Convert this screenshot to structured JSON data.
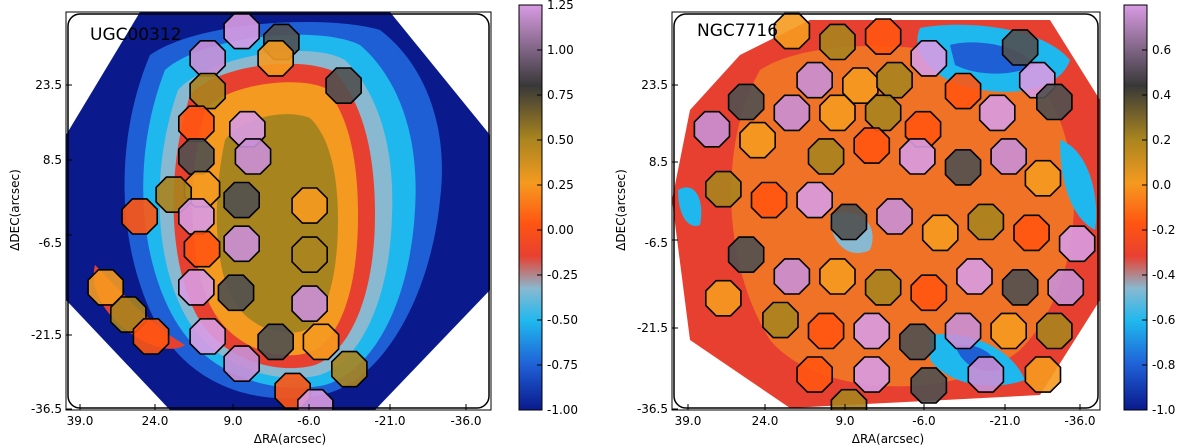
{
  "chart_data": [
    {
      "type": "heatmap",
      "title": "UGC00312",
      "xlabel": "ΔRA(arcsec)",
      "ylabel": "ΔDEC(arcsec)",
      "xlim": [
        39.0,
        -36.0
      ],
      "ylim": [
        -36.5,
        36.5
      ],
      "x_ticks": [
        "39.0",
        "24.0",
        "9.0",
        "-6.0",
        "-21.0",
        "-36.0"
      ],
      "y_ticks": [
        "23.5",
        "8.5",
        "-6.5",
        "-21.5",
        "-36.5"
      ],
      "colorbar": {
        "range": [
          -1.0,
          1.25
        ],
        "ticks": [
          "1.25",
          "1.00",
          "0.75",
          "0.50",
          "0.25",
          "0.00",
          "-0.25",
          "-0.50",
          "-0.75",
          "-1.00"
        ]
      },
      "regions": [
        {
          "x": 8,
          "y": 33
        },
        {
          "x": 1,
          "y": 31
        },
        {
          "x": 14,
          "y": 28
        },
        {
          "x": 2,
          "y": 28
        },
        {
          "x": 14,
          "y": 22
        },
        {
          "x": 16,
          "y": 16
        },
        {
          "x": 7,
          "y": 15
        },
        {
          "x": 16,
          "y": 10
        },
        {
          "x": 6,
          "y": 10
        },
        {
          "x": 15,
          "y": 4
        },
        {
          "x": 20,
          "y": 3
        },
        {
          "x": 26,
          "y": -1
        },
        {
          "x": 16,
          "y": -1
        },
        {
          "x": 8,
          "y": 2
        },
        {
          "x": 8,
          "y": -6
        },
        {
          "x": -4,
          "y": 1
        },
        {
          "x": -4,
          "y": -8
        },
        {
          "x": 15,
          "y": -7
        },
        {
          "x": 16,
          "y": -14
        },
        {
          "x": 9,
          "y": -15
        },
        {
          "x": -4,
          "y": -17
        },
        {
          "x": 32,
          "y": -14
        },
        {
          "x": 28,
          "y": -19
        },
        {
          "x": 24,
          "y": -23
        },
        {
          "x": 14,
          "y": -23
        },
        {
          "x": 2,
          "y": -24
        },
        {
          "x": 8,
          "y": -28
        },
        {
          "x": -6,
          "y": -24
        },
        {
          "x": -11,
          "y": -29
        },
        {
          "x": -1,
          "y": -33
        },
        {
          "x": -5,
          "y": -36
        },
        {
          "x": -10,
          "y": 23
        }
      ]
    },
    {
      "type": "heatmap",
      "title": "NGC7716",
      "xlabel": "ΔRA(arcsec)",
      "ylabel": "ΔDEC(arcsec)",
      "xlim": [
        39.0,
        -36.0
      ],
      "ylim": [
        -36.5,
        36.5
      ],
      "x_ticks": [
        "39.0",
        "24.0",
        "9.0",
        "-6.0",
        "-21.0",
        "-36.0"
      ],
      "y_ticks": [
        "23.5",
        "8.5",
        "-6.5",
        "-21.5",
        "-36.5"
      ],
      "colorbar": {
        "range": [
          -1.0,
          0.8
        ],
        "ticks": [
          "0.6",
          "0.4",
          "0.2",
          "0.0",
          "-0.2",
          "-0.4",
          "-0.6",
          "-0.8",
          "-1.0"
        ]
      },
      "regions": [
        {
          "x": 18,
          "y": 33
        },
        {
          "x": 10,
          "y": 31
        },
        {
          "x": 2,
          "y": 32
        },
        {
          "x": -6,
          "y": 28
        },
        {
          "x": -22,
          "y": 30
        },
        {
          "x": 14,
          "y": 24
        },
        {
          "x": 6,
          "y": 23
        },
        {
          "x": 0,
          "y": 24
        },
        {
          "x": -12,
          "y": 22
        },
        {
          "x": -25,
          "y": 24
        },
        {
          "x": 26,
          "y": 20
        },
        {
          "x": 18,
          "y": 18
        },
        {
          "x": 10,
          "y": 18
        },
        {
          "x": 2,
          "y": 18
        },
        {
          "x": -5,
          "y": 15
        },
        {
          "x": -18,
          "y": 18
        },
        {
          "x": -28,
          "y": 20
        },
        {
          "x": 32,
          "y": 15
        },
        {
          "x": 24,
          "y": 13
        },
        {
          "x": 12,
          "y": 10
        },
        {
          "x": 4,
          "y": 12
        },
        {
          "x": -4,
          "y": 10
        },
        {
          "x": -12,
          "y": 8
        },
        {
          "x": -20,
          "y": 10
        },
        {
          "x": -26,
          "y": 6
        },
        {
          "x": 30,
          "y": 4
        },
        {
          "x": 22,
          "y": 2
        },
        {
          "x": 14,
          "y": 2
        },
        {
          "x": 8,
          "y": -2
        },
        {
          "x": 0,
          "y": -1
        },
        {
          "x": -8,
          "y": -4
        },
        {
          "x": -16,
          "y": -2
        },
        {
          "x": -24,
          "y": -4
        },
        {
          "x": -32,
          "y": -6
        },
        {
          "x": 26,
          "y": -8
        },
        {
          "x": 18,
          "y": -12
        },
        {
          "x": 10,
          "y": -12
        },
        {
          "x": 2,
          "y": -14
        },
        {
          "x": -6,
          "y": -15
        },
        {
          "x": -14,
          "y": -12
        },
        {
          "x": -22,
          "y": -14
        },
        {
          "x": -30,
          "y": -14
        },
        {
          "x": 30,
          "y": -16
        },
        {
          "x": 20,
          "y": -20
        },
        {
          "x": 12,
          "y": -22
        },
        {
          "x": 4,
          "y": -22
        },
        {
          "x": -4,
          "y": -24
        },
        {
          "x": -12,
          "y": -22
        },
        {
          "x": -20,
          "y": -22
        },
        {
          "x": -28,
          "y": -22
        },
        {
          "x": 14,
          "y": -30
        },
        {
          "x": 4,
          "y": -30
        },
        {
          "x": -6,
          "y": -32
        },
        {
          "x": -16,
          "y": -30
        },
        {
          "x": -26,
          "y": -30
        },
        {
          "x": 8,
          "y": -36
        }
      ]
    }
  ],
  "colors": {
    "colormap": [
      "#0a1a8c",
      "#1f5fd6",
      "#1fb8ee",
      "#88b9d0",
      "#e84030",
      "#ff5512",
      "#f59a20",
      "#a8841f",
      "#383838",
      "#c98fd6"
    ],
    "background": "#ffffff"
  }
}
